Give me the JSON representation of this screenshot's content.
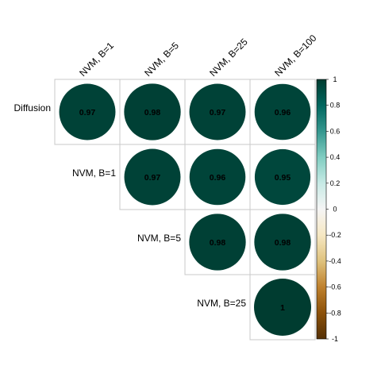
{
  "chart_data": {
    "type": "heatmap",
    "style": "correlation-circles-upper-triangle",
    "rows": [
      "Diffusion",
      "NVM, B=1",
      "NVM, B=5",
      "NVM, B=25"
    ],
    "columns": [
      "NVM, B=1",
      "NVM, B=5",
      "NVM, B=25",
      "NVM, B=100"
    ],
    "values": [
      [
        "0.97",
        "0.98",
        "0.97",
        "0.96"
      ],
      [
        null,
        "0.97",
        "0.96",
        "0.95"
      ],
      [
        null,
        null,
        "0.98",
        "0.98"
      ],
      [
        null,
        null,
        null,
        "1"
      ]
    ],
    "colorbar": {
      "range": [
        -1,
        1
      ],
      "ticks": [
        "1",
        "0.8",
        "0.6",
        "0.4",
        "0.2",
        "0",
        "-0.2",
        "-0.4",
        "-0.6",
        "-0.8",
        "-1"
      ],
      "colors": [
        "#543005",
        "#8c510a",
        "#bf812d",
        "#dfc27d",
        "#f6e8c3",
        "#f5f5f5",
        "#c7eae5",
        "#80cdc1",
        "#35978f",
        "#01665e",
        "#003c30"
      ]
    },
    "grid": true,
    "legend": "right"
  }
}
